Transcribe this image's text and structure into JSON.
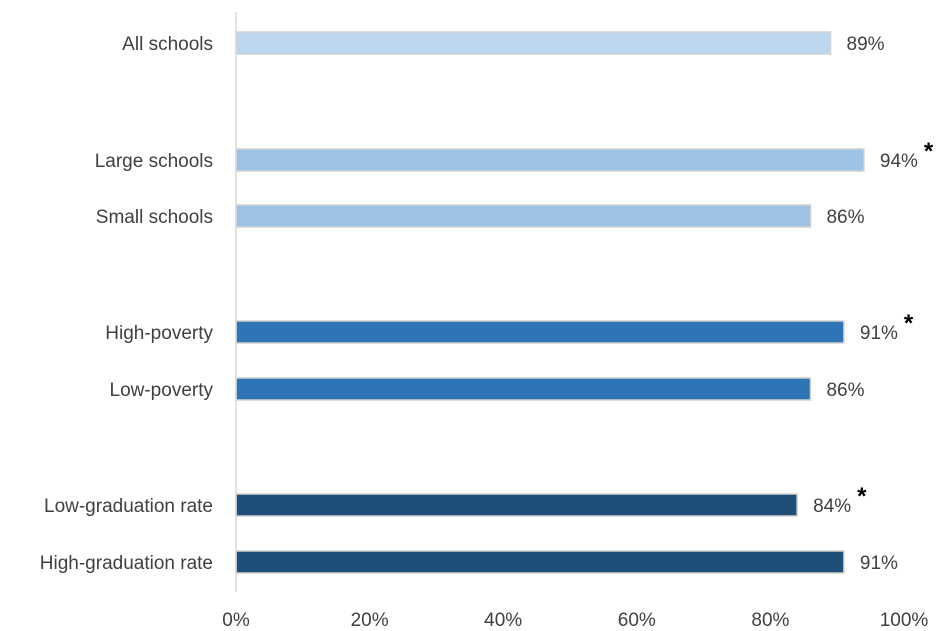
{
  "chart_data": {
    "type": "bar",
    "orientation": "horizontal",
    "title": "",
    "xlabel": "",
    "ylabel": "",
    "xlim": [
      0,
      100
    ],
    "x_ticks": [
      "0%",
      "20%",
      "40%",
      "60%",
      "80%",
      "100%"
    ],
    "x_tick_values": [
      0,
      20,
      40,
      60,
      80,
      100
    ],
    "grid": false,
    "categories": [
      "All schools",
      "Large schools",
      "Small schools",
      "High-poverty",
      "Low-poverty",
      "Low-graduation rate",
      "High-graduation rate"
    ],
    "values": [
      89,
      94,
      86,
      91,
      86,
      84,
      91
    ],
    "value_labels": [
      "89%",
      "94%",
      "86%",
      "91%",
      "86%",
      "84%",
      "91%"
    ],
    "significance_marks": [
      "",
      "*",
      "",
      "*",
      "",
      "*",
      ""
    ],
    "groups": [
      "all",
      "size",
      "size",
      "poverty",
      "poverty",
      "graduation",
      "graduation"
    ],
    "colors": {
      "all": "#bdd7ee",
      "size": "#9dc3e6",
      "poverty": "#2e75b6",
      "graduation": "#1f4e79",
      "bar_border": "#d0d0d0",
      "axis": "#d9d9d9",
      "text": "#404040"
    }
  }
}
